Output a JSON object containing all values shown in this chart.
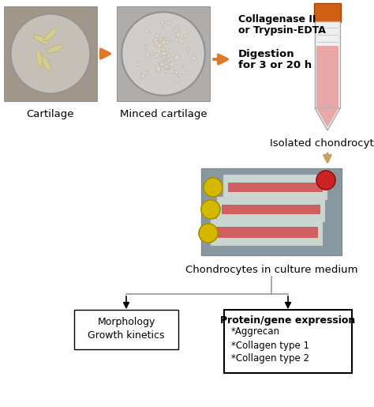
{
  "bg_color": "#ffffff",
  "labels": {
    "cartilage": "Cartilage",
    "minced": "Minced cartilage",
    "isolated": "Isolated chondrocytes",
    "culture": "Chondrocytes in culture medium",
    "collagenase_line1": "Collagenase II",
    "collagenase_line2": "or Trypsin-EDTA",
    "digestion": "Digestion",
    "digestion2": "for 3 or 20 h",
    "morphology_line1": "Morphology",
    "morphology_line2": "Growth kinetics",
    "protein_title": "Protein/gene expression",
    "protein_items": [
      "*Aggrecan",
      "*Collagen type 1",
      "*Collagen type 2"
    ]
  },
  "orange_arrow": "#E07828",
  "tan_arrow": "#C8A060",
  "gray_line": "#999999",
  "black": "#000000",
  "tube_cap": "#D06010",
  "tube_body_bg": "#F0F0F0",
  "tube_liquid": "#E8A8A8",
  "tube_stripe": "#CCCCCC",
  "img1_bg": "#B0A898",
  "img1_dish": "#C8C4BC",
  "img2_bg": "#C0BCBA",
  "img2_dish": "#D8D4D0",
  "img3_bg": "#90A888",
  "img3_detail": "#D0504040"
}
